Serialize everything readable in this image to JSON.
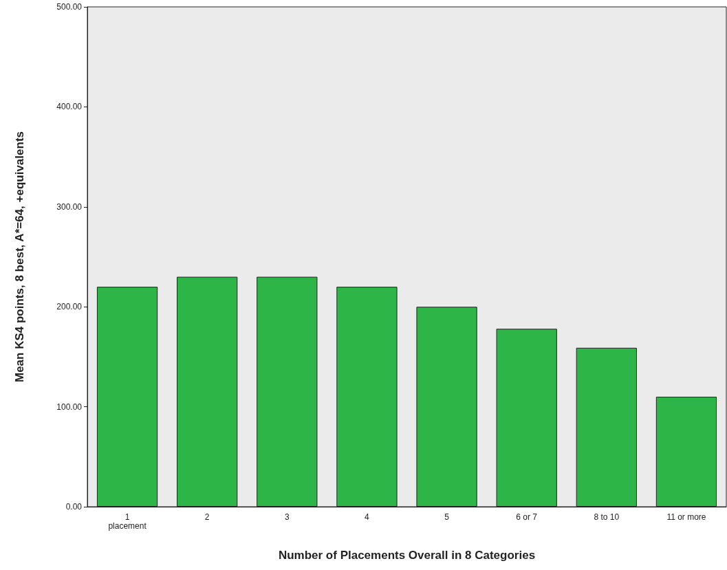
{
  "chart_data": {
    "type": "bar",
    "xlabel": "Number of Placements Overall in 8 Categories",
    "ylabel": "Mean KS4 points, 8 best, A*=64, +equivalents",
    "categories": [
      "1\nplacement",
      "2",
      "3",
      "4",
      "5",
      "6 or 7",
      "8 to 10",
      "11 or more"
    ],
    "values": [
      220,
      230,
      230,
      220,
      200,
      178,
      159,
      110
    ],
    "color": "#2eb548",
    "ylim": [
      0,
      500
    ],
    "yticks": [
      {
        "value": 0,
        "label": "0.00"
      },
      {
        "value": 100,
        "label": "100.00"
      },
      {
        "value": 200,
        "label": "200.00"
      },
      {
        "value": 300,
        "label": "300.00"
      },
      {
        "value": 400,
        "label": "400.00"
      },
      {
        "value": 500,
        "label": "500.00"
      }
    ],
    "grid": false
  }
}
